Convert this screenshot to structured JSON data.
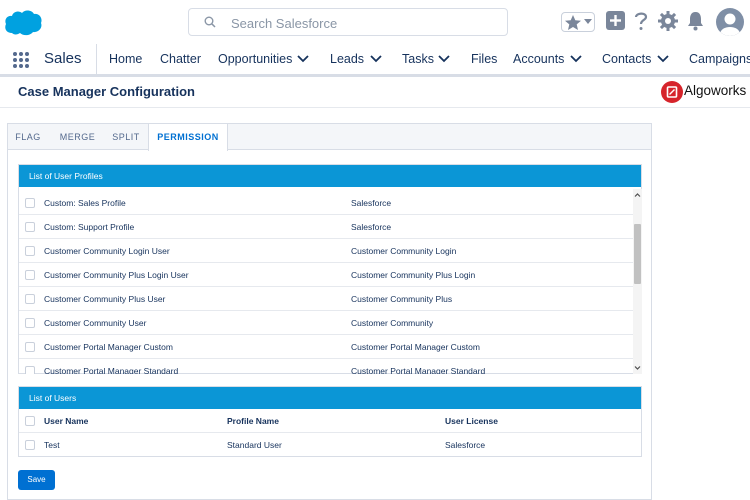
{
  "header": {
    "search_placeholder": "Search Salesforce",
    "brand_color": "#00a1e0"
  },
  "nav": {
    "app_name": "Sales",
    "items": [
      "Home",
      "Chatter",
      "Opportunities",
      "Leads",
      "Tasks",
      "Files",
      "Accounts",
      "Contacts",
      "Campaigns"
    ]
  },
  "page": {
    "title": "Case Manager Configuration",
    "brand": "Algoworks"
  },
  "tabs": [
    "FLAG",
    "MERGE",
    "SPLIT",
    "PERMISSION"
  ],
  "active_tab": "PERMISSION",
  "profiles": {
    "title": "List of User Profiles",
    "rows": [
      [
        "Custom: Sales Profile",
        "Salesforce"
      ],
      [
        "Custom: Support Profile",
        "Salesforce"
      ],
      [
        "Customer Community Login User",
        "Customer Community Login"
      ],
      [
        "Customer Community Plus Login User",
        "Customer Community Plus Login"
      ],
      [
        "Customer Community Plus User",
        "Customer Community Plus"
      ],
      [
        "Customer Community User",
        "Customer Community"
      ],
      [
        "Customer Portal Manager Custom",
        "Customer Portal Manager Custom"
      ],
      [
        "Customer Portal Manager Standard",
        "Customer Portal Manager Standard"
      ]
    ]
  },
  "users": {
    "title": "List of Users",
    "columns": [
      "User Name",
      "Profile Name",
      "User License"
    ],
    "rows": [
      [
        "Test",
        "Standard User",
        "Salesforce"
      ]
    ]
  },
  "actions": {
    "save_label": "Save"
  },
  "colors": {
    "accent": "#0070d2",
    "panel_header": "#0b96d6"
  }
}
